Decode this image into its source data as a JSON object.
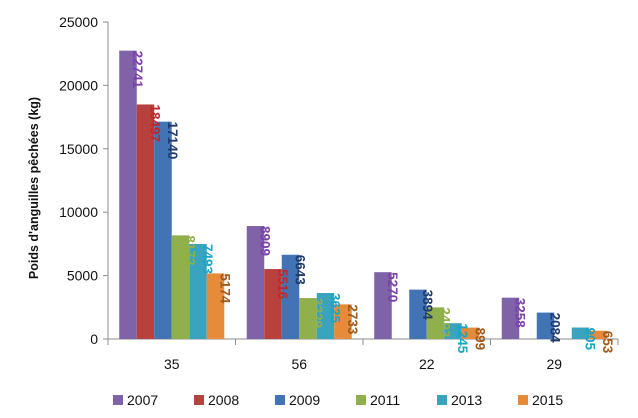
{
  "chart_data": {
    "type": "bar",
    "categories": [
      "35",
      "56",
      "22",
      "29"
    ],
    "ylabel": "Poids d'anguilles pêchées (kg)",
    "ylim": [
      0,
      25000
    ],
    "yticks": [
      "0",
      "5000",
      "10000",
      "15000",
      "20000",
      "25000"
    ],
    "grid": false,
    "legend_position": "bottom",
    "series": [
      {
        "name": "2007",
        "color": "#7f62a8",
        "values": [
          22741,
          8909,
          5270,
          3258
        ]
      },
      {
        "name": "2008",
        "color": "#b8413d",
        "values": [
          18497,
          5516,
          null,
          null
        ]
      },
      {
        "name": "2009",
        "color": "#4273b4",
        "values": [
          17140,
          6643,
          3894,
          2084
        ]
      },
      {
        "name": "2011",
        "color": "#8fb04b",
        "values": [
          8172,
          3229,
          2493,
          null
        ]
      },
      {
        "name": "2013",
        "color": "#3aa3be",
        "values": [
          7493,
          3625,
          1245,
          905
        ]
      },
      {
        "name": "2015",
        "color": "#e68b3a",
        "values": [
          5174,
          2733,
          899,
          653
        ]
      }
    ],
    "label_colors": [
      "#7b3fa8",
      "#c0282b",
      "#1f3a6e",
      "#8fb04b",
      "#1ba5c4",
      "#9c5a1e"
    ]
  }
}
